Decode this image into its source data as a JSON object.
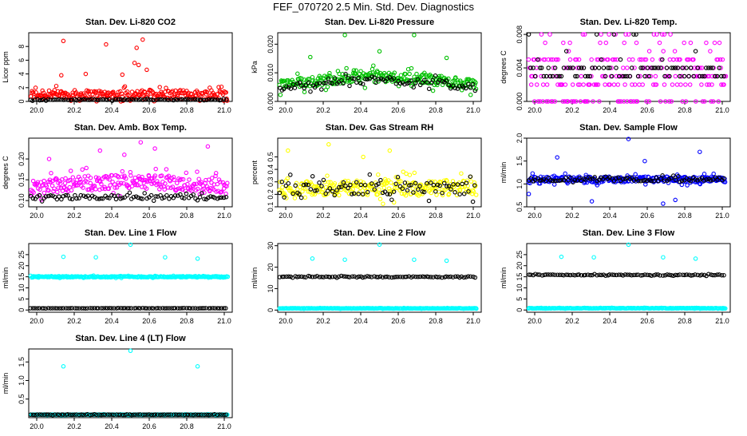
{
  "page": {
    "title": "FEF_070720  2.5 Min. Std. Dev. Diagnostics"
  },
  "colors": {
    "red": "#ff0000",
    "green": "#00c000",
    "magenta": "#ff00ff",
    "yellow": "#ffff00",
    "blue": "#0000ff",
    "cyan": "#00ffff",
    "black": "#000000"
  },
  "chart_data": [
    {
      "type": "scatter",
      "title": "Stan. Dev. Li-820 CO2",
      "xlabel": "",
      "ylabel": "Licor ppm",
      "xlim": [
        20.0,
        21.0
      ],
      "ylim": [
        0,
        10
      ],
      "xticks": [
        "20.0",
        "20.2",
        "20.4",
        "20.6",
        "20.8",
        "21.0"
      ],
      "yticks": [
        "0",
        "2",
        "4",
        "6",
        "8"
      ],
      "series": [
        {
          "color": "#ff0000",
          "base": 1.0,
          "spread": 1.3,
          "points": [
            [
              20.17,
              8.8
            ],
            [
              20.38,
              8.3
            ],
            [
              20.53,
              7.8
            ],
            [
              20.56,
              9.0
            ],
            [
              20.54,
              5.3
            ],
            [
              20.58,
              4.6
            ],
            [
              20.52,
              5.6
            ],
            [
              20.28,
              4.0
            ],
            [
              20.16,
              3.8
            ],
            [
              20.46,
              3.9
            ]
          ]
        },
        {
          "color": "#000000",
          "base": 0.25,
          "spread": 0.15,
          "points": []
        }
      ]
    },
    {
      "type": "scatter",
      "title": "Stan. Dev. Li-820 Pressure",
      "xlabel": "",
      "ylabel": "kPa",
      "xlim": [
        20.0,
        21.0
      ],
      "ylim": [
        0,
        0.024
      ],
      "xticks": [
        "20.0",
        "20.2",
        "20.4",
        "20.6",
        "20.8",
        "21.0"
      ],
      "yticks": [
        "0.000",
        "0.010",
        "0.020"
      ],
      "series": [
        {
          "color": "#00c000",
          "base": 0.0055,
          "spread": 0.0035,
          "bump": 0.003,
          "points": [
            [
              20.33,
              0.0232
            ],
            [
              20.67,
              0.0232
            ],
            [
              20.16,
              0.0155
            ],
            [
              20.5,
              0.0175
            ],
            [
              20.83,
              0.0152
            ],
            [
              20.47,
              0.0125
            ]
          ]
        },
        {
          "color": "#000000",
          "base": 0.0045,
          "spread": 0.0025,
          "bump": 0.003,
          "points": []
        }
      ]
    },
    {
      "type": "scatter",
      "title": "Stan. Dev. Li-820 Temp.",
      "xlabel": "",
      "ylabel": "degrees C",
      "xlim": [
        20.0,
        21.0
      ],
      "ylim": [
        0,
        0.0082
      ],
      "xticks": [
        "20.0",
        "20.2",
        "20.4",
        "20.6",
        "20.8",
        "21.0"
      ],
      "yticks": [
        "0.000",
        "0.004",
        "0.008"
      ],
      "series": [
        {
          "color": "#ff00ff",
          "levels": [
            0.0,
            0.002,
            0.003,
            0.004,
            0.005
          ],
          "upper": [
            0.006,
            0.007,
            0.008
          ],
          "points": []
        },
        {
          "color": "#000000",
          "levels": [
            0.003,
            0.004
          ],
          "upper": [
            0.005,
            0.006,
            0.008
          ],
          "points": []
        }
      ]
    },
    {
      "type": "scatter",
      "title": "Stan. Dev. Amb. Box Temp.",
      "xlabel": "",
      "ylabel": "degrees C",
      "xlim": [
        20.0,
        21.0
      ],
      "ylim": [
        0.085,
        0.25
      ],
      "xticks": [
        "20.0",
        "20.2",
        "20.4",
        "20.6",
        "20.8",
        "21.0"
      ],
      "yticks": [
        "0.10",
        "0.15",
        "0.20"
      ],
      "series": [
        {
          "color": "#ff00ff",
          "base": 0.13,
          "spread": 0.035,
          "bump": 0.015,
          "points": [
            [
              20.55,
              0.24
            ],
            [
              20.88,
              0.23
            ],
            [
              20.62,
              0.225
            ],
            [
              20.35,
              0.22
            ],
            [
              20.1,
              0.2
            ],
            [
              20.47,
              0.21
            ]
          ]
        },
        {
          "color": "#000000",
          "base": 0.108,
          "spread": 0.01,
          "points": []
        }
      ]
    },
    {
      "type": "scatter",
      "title": "Stan. Dev. Gas Stream RH",
      "xlabel": "",
      "ylabel": "percent",
      "xlim": [
        20.0,
        21.0
      ],
      "ylim": [
        0.1,
        0.65
      ],
      "xticks": [
        "20.0",
        "20.2",
        "20.4",
        "20.6",
        "20.8",
        "21.0"
      ],
      "yticks": [
        "0.1",
        "0.2",
        "0.3",
        "0.4",
        "0.5"
      ],
      "series": [
        {
          "color": "#ffff00",
          "base": 0.25,
          "spread": 0.12,
          "points": [
            [
              20.25,
              0.6
            ],
            [
              20.05,
              0.55
            ],
            [
              20.55,
              0.55
            ],
            [
              20.42,
              0.5
            ]
          ]
        },
        {
          "color": "#000000",
          "base": 0.25,
          "spread": 0.1,
          "points": []
        }
      ]
    },
    {
      "type": "scatter",
      "title": "Stan. Dev. Sample Flow",
      "xlabel": "",
      "ylabel": "ml/min",
      "xlim": [
        20.0,
        21.0
      ],
      "ylim": [
        0.5,
        2.0
      ],
      "xticks": [
        "20.0",
        "20.2",
        "20.4",
        "20.6",
        "20.8",
        "21.0"
      ],
      "yticks": [
        "0.5",
        "1.0",
        "1.5",
        "2.0"
      ],
      "series": [
        {
          "color": "#0000ff",
          "base": 1.1,
          "spread": 0.12,
          "points": [
            [
              20.5,
              1.98
            ],
            [
              20.85,
              1.7
            ],
            [
              20.15,
              1.58
            ],
            [
              20.32,
              0.62
            ],
            [
              20.67,
              0.57
            ],
            [
              20.73,
              0.65
            ],
            [
              20.58,
              1.5
            ],
            [
              20.01,
              0.78
            ]
          ]
        },
        {
          "color": "#000000",
          "base": 1.1,
          "spread": 0.08,
          "points": []
        }
      ]
    },
    {
      "type": "scatter",
      "title": "Stan. Dev. Line 1 Flow",
      "xlabel": "",
      "ylabel": "ml/min",
      "xlim": [
        20.0,
        21.0
      ],
      "ylim": [
        -1,
        30
      ],
      "xticks": [
        "20.0",
        "20.2",
        "20.4",
        "20.6",
        "20.8",
        "21.0"
      ],
      "yticks": [
        "0",
        "5",
        "10",
        "15",
        "20",
        "25"
      ],
      "series": [
        {
          "color": "#00ffff",
          "base": 15.0,
          "spread": 0.5,
          "points": [
            [
              20.17,
              24.0
            ],
            [
              20.33,
              23.8
            ],
            [
              20.5,
              29.5
            ],
            [
              20.67,
              23.8
            ],
            [
              20.83,
              23.2
            ]
          ]
        },
        {
          "color": "#000000",
          "base": 0.8,
          "spread": 0.1,
          "points": []
        }
      ]
    },
    {
      "type": "scatter",
      "title": "Stan. Dev. Line 2 Flow",
      "xlabel": "",
      "ylabel": "ml/min",
      "xlim": [
        20.0,
        21.0
      ],
      "ylim": [
        -1,
        31
      ],
      "xticks": [
        "20.0",
        "20.2",
        "20.4",
        "20.6",
        "20.8",
        "21.0"
      ],
      "yticks": [
        "0",
        "10",
        "20",
        "30"
      ],
      "series": [
        {
          "color": "#00ffff",
          "base": 0.8,
          "spread": 0.2,
          "points": [
            [
              20.17,
              24.0
            ],
            [
              20.33,
              23.5
            ],
            [
              20.5,
              30.5
            ],
            [
              20.67,
              23.5
            ],
            [
              20.83,
              23.0
            ]
          ]
        },
        {
          "color": "#000000",
          "base": 15.5,
          "spread": 0.4,
          "points": []
        }
      ]
    },
    {
      "type": "scatter",
      "title": "Stan. Dev. Line 3 Flow",
      "xlabel": "",
      "ylabel": "ml/min",
      "xlim": [
        20.0,
        21.0
      ],
      "ylim": [
        -1,
        30
      ],
      "xticks": [
        "20.0",
        "20.2",
        "20.4",
        "20.6",
        "20.8",
        "21.0"
      ],
      "yticks": [
        "0",
        "5",
        "10",
        "15",
        "20",
        "25"
      ],
      "series": [
        {
          "color": "#00ffff",
          "base": 0.8,
          "spread": 0.2,
          "points": [
            [
              20.17,
              24.0
            ],
            [
              20.33,
              23.8
            ],
            [
              20.5,
              29.5
            ],
            [
              20.67,
              23.8
            ],
            [
              20.83,
              23.2
            ]
          ]
        },
        {
          "color": "#000000",
          "base": 15.8,
          "spread": 0.4,
          "points": []
        }
      ]
    },
    {
      "type": "scatter",
      "title": "Stan. Dev. Line 4 (LT) Flow",
      "xlabel": "",
      "ylabel": "ml/min",
      "xlim": [
        20.0,
        21.0
      ],
      "ylim": [
        0.0,
        1.85
      ],
      "xticks": [
        "20.0",
        "20.2",
        "20.4",
        "20.6",
        "20.8",
        "21.0"
      ],
      "yticks": [
        "0.5",
        "1.0",
        "1.5"
      ],
      "series": [
        {
          "color": "#00ffff",
          "base": 0.08,
          "spread": 0.01,
          "points": [
            [
              20.17,
              1.38
            ],
            [
              20.5,
              1.8
            ],
            [
              20.83,
              1.38
            ]
          ]
        },
        {
          "color": "#000000",
          "base": 0.08,
          "spread": 0.01,
          "points": []
        }
      ]
    }
  ]
}
